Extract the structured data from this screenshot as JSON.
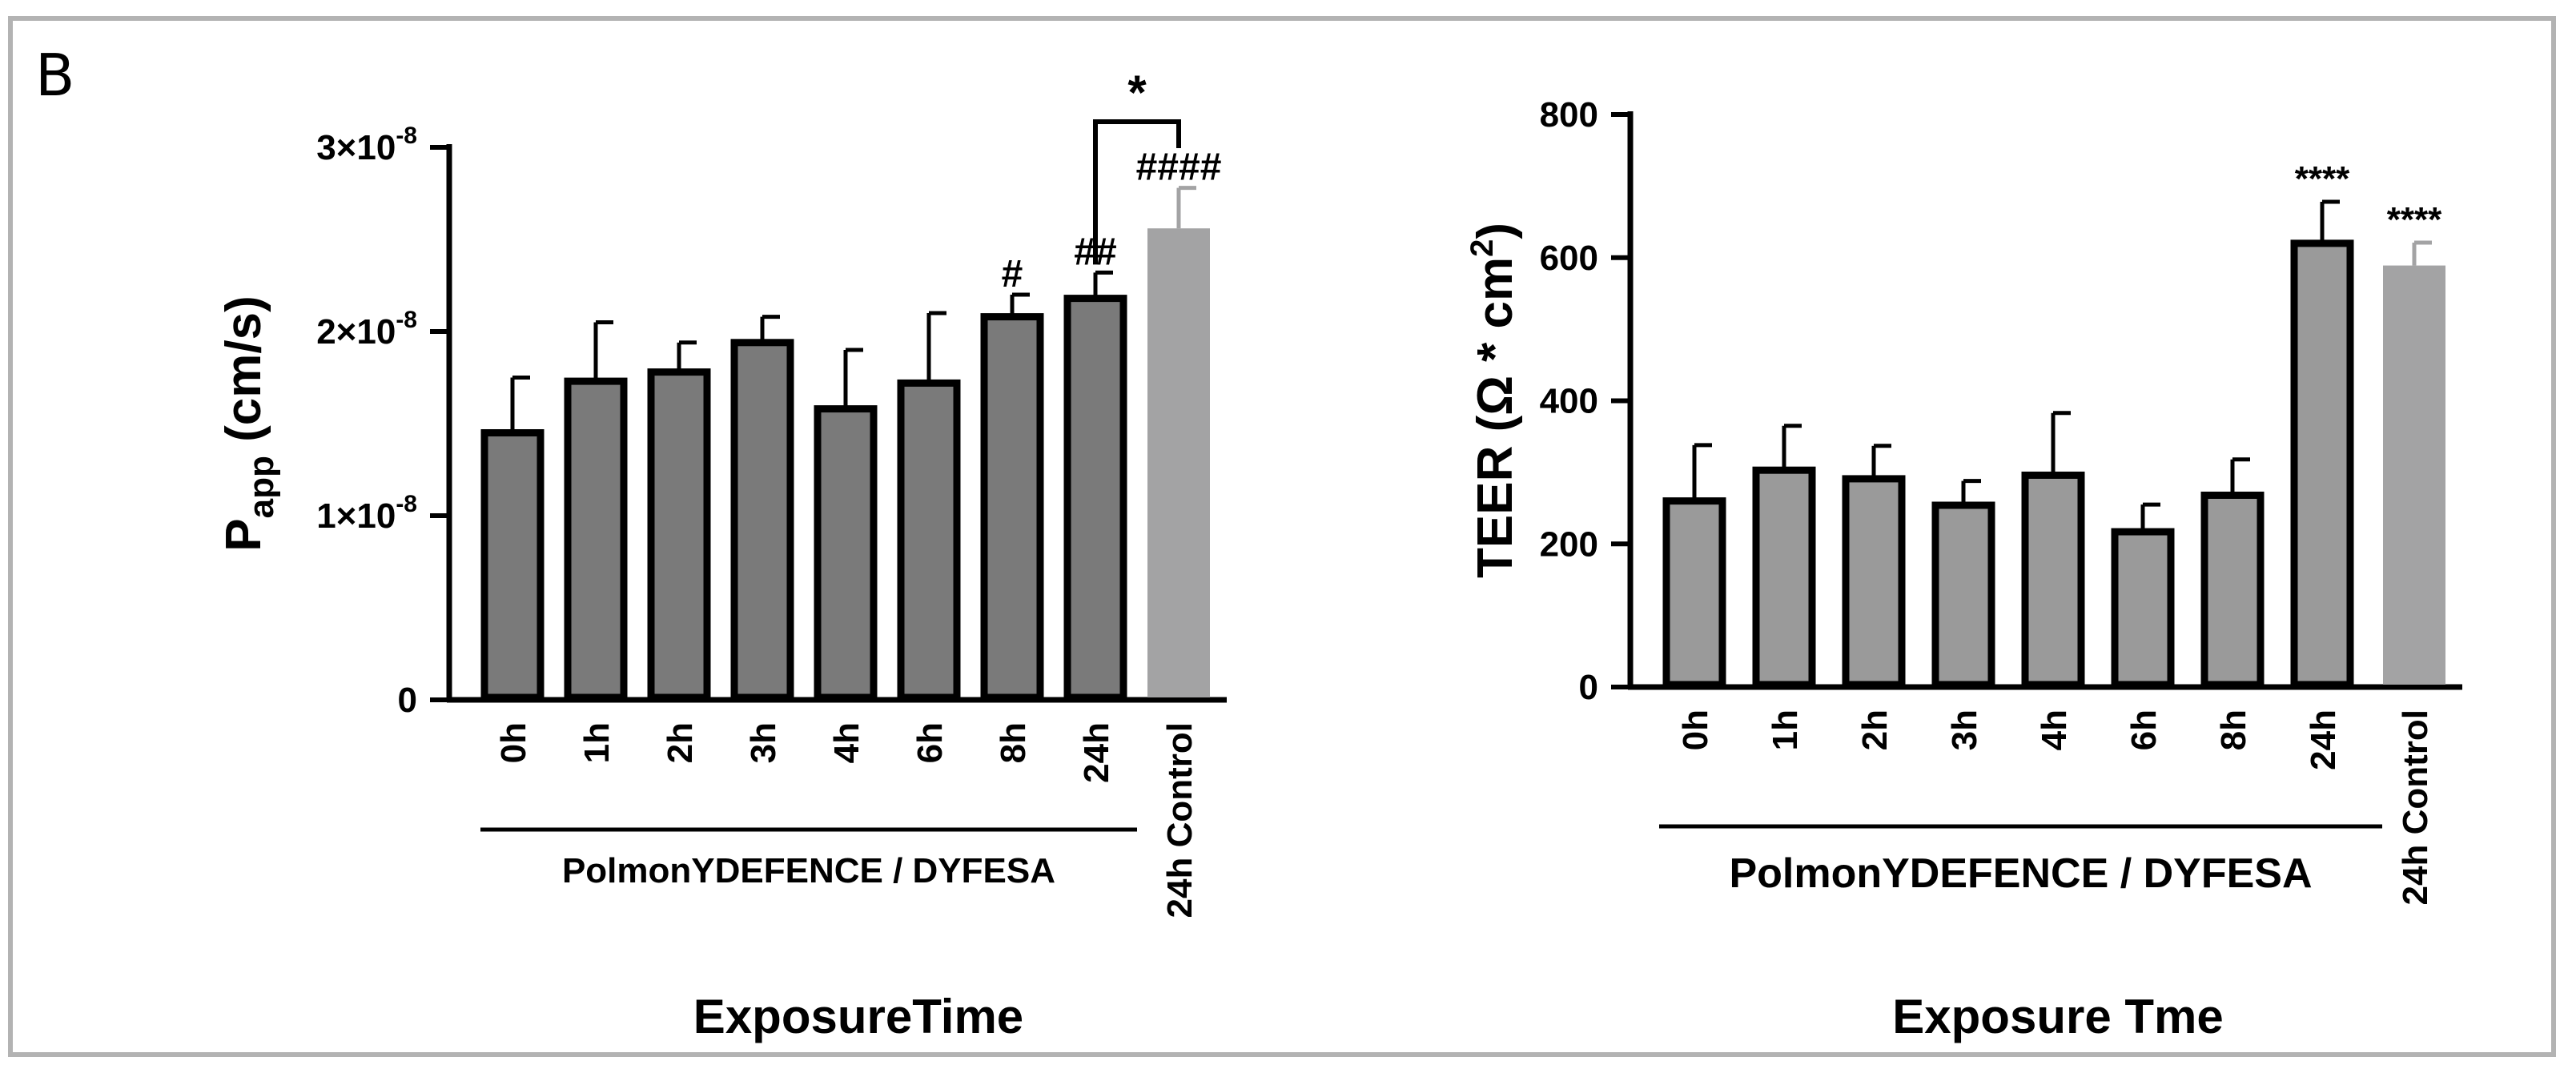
{
  "panel_label": "B",
  "colors": {
    "bar": "#7a7a7a",
    "control_bar": "#a3a3a4",
    "teer_bar": "#9a9a9a",
    "axis": "#000000"
  },
  "chart_data": [
    {
      "type": "bar",
      "title": "",
      "ylabel_main": "P",
      "ylabel_sub": "app",
      "ylabel_rest": " (cm/s)",
      "xlabel": "ExposureTime",
      "group_label": "PolmonYDEFENCE / DYFESA",
      "ylim": [
        0,
        3e-08
      ],
      "y_ticks": [
        {
          "value": 0,
          "base": "0",
          "exp": ""
        },
        {
          "value": 1e-08,
          "base": "1×10",
          "exp": "-8"
        },
        {
          "value": 2e-08,
          "base": "2×10",
          "exp": "-8"
        },
        {
          "value": 3e-08,
          "base": "3×10",
          "exp": "-8"
        }
      ],
      "categories": [
        "0h",
        "1h",
        "2h",
        "3h",
        "4h",
        "6h",
        "8h",
        "24h",
        "24h Control"
      ],
      "values": [
        1.45e-08,
        1.73e-08,
        1.78e-08,
        1.94e-08,
        1.58e-08,
        1.72e-08,
        2.08e-08,
        2.18e-08,
        2.56e-08
      ],
      "errors": [
        3e-09,
        3.2e-09,
        1.6e-09,
        1.4e-09,
        3.2e-09,
        3.8e-09,
        1.2e-09,
        1.4e-09,
        2.2e-09
      ],
      "annotations": [
        "",
        "",
        "",
        "",
        "",
        "",
        "#",
        "##",
        "####"
      ],
      "bracket": {
        "from": "24h",
        "to": "24h Control",
        "label": "*"
      }
    },
    {
      "type": "bar",
      "title": "",
      "ylabel_main": "TEER (Ω * cm",
      "ylabel_sup": "2",
      "ylabel_rest": ")",
      "xlabel": "Exposure Tme",
      "group_label": "PolmonYDEFENCE / DYFESA",
      "ylim": [
        0,
        800
      ],
      "y_ticks": [
        {
          "value": 0,
          "base": "0",
          "exp": ""
        },
        {
          "value": 200,
          "base": "200",
          "exp": ""
        },
        {
          "value": 400,
          "base": "400",
          "exp": ""
        },
        {
          "value": 600,
          "base": "600",
          "exp": ""
        },
        {
          "value": 800,
          "base": "800",
          "exp": ""
        }
      ],
      "categories": [
        "0h",
        "1h",
        "2h",
        "3h",
        "4h",
        "6h",
        "8h",
        "24h",
        "24h Control"
      ],
      "values": [
        260,
        303,
        291,
        254,
        296,
        217,
        268,
        620,
        589
      ],
      "errors": [
        78,
        62,
        46,
        34,
        87,
        38,
        50,
        58,
        32
      ],
      "annotations": [
        "",
        "",
        "",
        "",
        "",
        "",
        "",
        "****",
        "****"
      ]
    }
  ]
}
